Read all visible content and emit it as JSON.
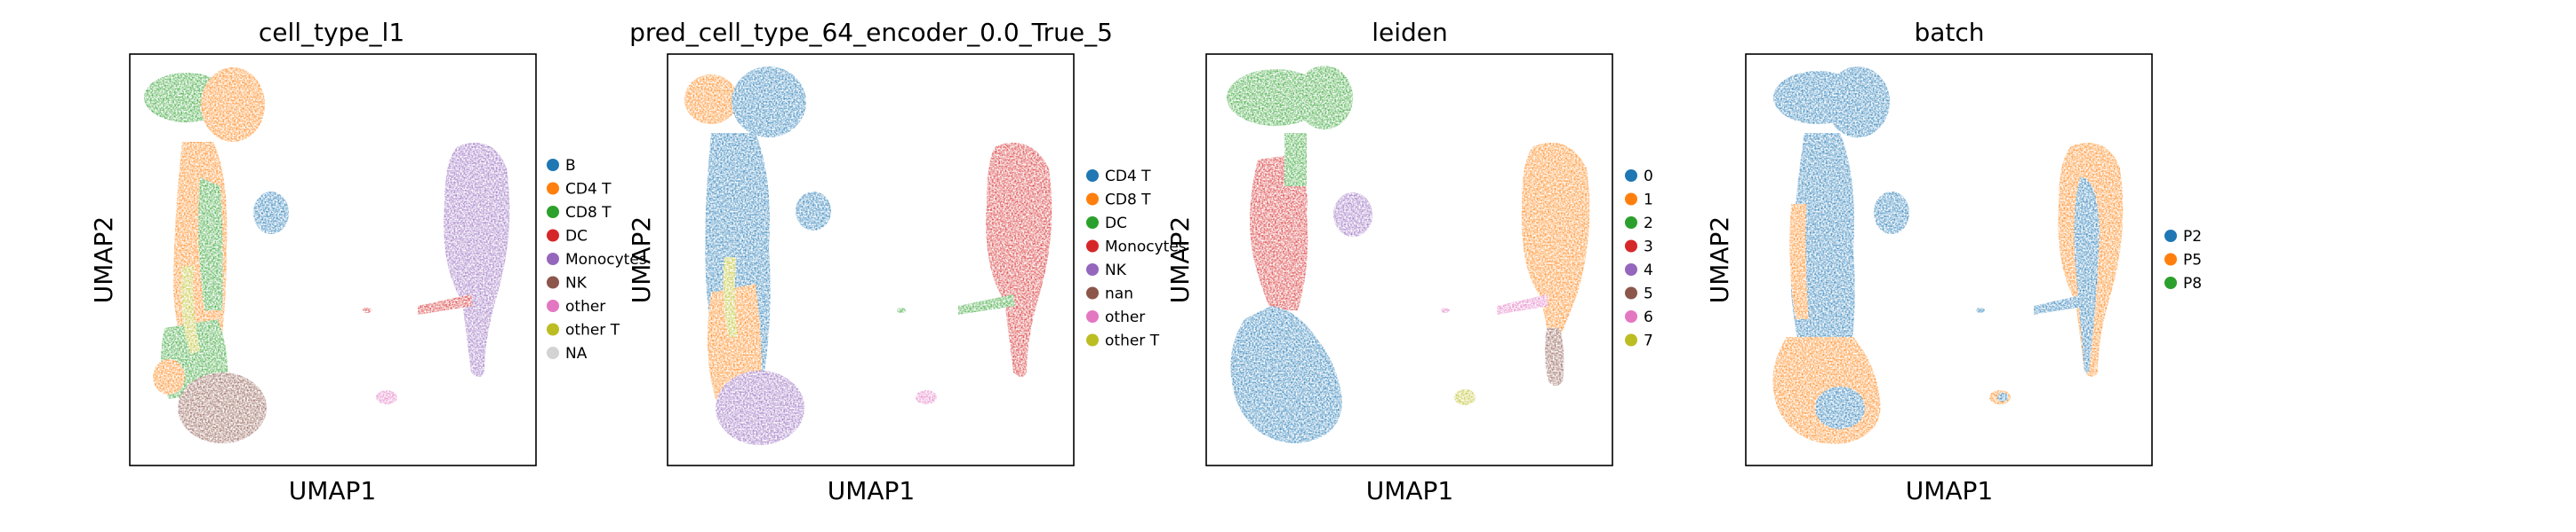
{
  "chart_data": [
    {
      "type": "scatter",
      "title": "cell_type_l1",
      "xlabel": "UMAP1",
      "ylabel": "UMAP2",
      "ticks": "none",
      "legend_position": "right",
      "legend": [
        {
          "label": "B",
          "color": "#1f77b4"
        },
        {
          "label": "CD4 T",
          "color": "#ff7f0e"
        },
        {
          "label": "CD8 T",
          "color": "#2ca02c"
        },
        {
          "label": "DC",
          "color": "#d62728"
        },
        {
          "label": "Monocytes",
          "color": "#9467bd"
        },
        {
          "label": "NK",
          "color": "#8c564b"
        },
        {
          "label": "other",
          "color": "#e377c2"
        },
        {
          "label": "other T",
          "color": "#bcbd22"
        },
        {
          "label": "NA",
          "color": "#d3d3d3"
        }
      ]
    },
    {
      "type": "scatter",
      "title": "pred_cell_type_64_encoder_0.0_True_5",
      "xlabel": "UMAP1",
      "ylabel": "UMAP2",
      "ticks": "none",
      "legend_position": "right",
      "legend": [
        {
          "label": "CD4 T",
          "color": "#1f77b4"
        },
        {
          "label": "CD8 T",
          "color": "#ff7f0e"
        },
        {
          "label": "DC",
          "color": "#2ca02c"
        },
        {
          "label": "Monocytes",
          "color": "#d62728"
        },
        {
          "label": "NK",
          "color": "#9467bd"
        },
        {
          "label": "nan",
          "color": "#8c564b"
        },
        {
          "label": "other",
          "color": "#e377c2"
        },
        {
          "label": "other T",
          "color": "#bcbd22"
        }
      ]
    },
    {
      "type": "scatter",
      "title": "leiden",
      "xlabel": "UMAP1",
      "ylabel": "UMAP2",
      "ticks": "none",
      "legend_position": "right",
      "legend": [
        {
          "label": "0",
          "color": "#1f77b4"
        },
        {
          "label": "1",
          "color": "#ff7f0e"
        },
        {
          "label": "2",
          "color": "#2ca02c"
        },
        {
          "label": "3",
          "color": "#d62728"
        },
        {
          "label": "4",
          "color": "#9467bd"
        },
        {
          "label": "5",
          "color": "#8c564b"
        },
        {
          "label": "6",
          "color": "#e377c2"
        },
        {
          "label": "7",
          "color": "#bcbd22"
        }
      ]
    },
    {
      "type": "scatter",
      "title": "batch",
      "xlabel": "UMAP1",
      "ylabel": "UMAP2",
      "ticks": "none",
      "legend_position": "right",
      "legend": [
        {
          "label": "P2",
          "color": "#1f77b4"
        },
        {
          "label": "P5",
          "color": "#ff7f0e"
        },
        {
          "label": "P8",
          "color": "#2ca02c"
        }
      ]
    }
  ]
}
